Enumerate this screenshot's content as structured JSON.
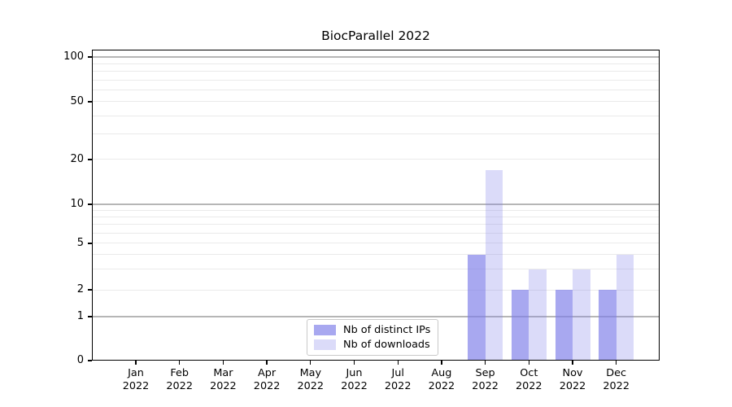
{
  "title": "BiocParallel 2022",
  "chart_data": {
    "type": "bar",
    "title": "BiocParallel 2022",
    "x_labels": [
      [
        "Jan",
        "2022"
      ],
      [
        "Feb",
        "2022"
      ],
      [
        "Mar",
        "2022"
      ],
      [
        "Apr",
        "2022"
      ],
      [
        "May",
        "2022"
      ],
      [
        "Jun",
        "2022"
      ],
      [
        "Jul",
        "2022"
      ],
      [
        "Aug",
        "2022"
      ],
      [
        "Sep",
        "2022"
      ],
      [
        "Oct",
        "2022"
      ],
      [
        "Nov",
        "2022"
      ],
      [
        "Dec",
        "2022"
      ]
    ],
    "series": [
      {
        "name": "Nb of distinct IPs",
        "color": "rgba(125,125,232,0.67)",
        "values": [
          0,
          0,
          0,
          0,
          0,
          0,
          0,
          0,
          4,
          2,
          2,
          2
        ]
      },
      {
        "name": "Nb of downloads",
        "color": "rgba(125,125,232,0.28)",
        "values": [
          0,
          0,
          0,
          0,
          0,
          0,
          0,
          0,
          17,
          3,
          3,
          4
        ]
      }
    ],
    "y_axis": {
      "tick_labels": [
        "0",
        "1",
        "2",
        "5",
        "10",
        "20",
        "50",
        "100"
      ],
      "tick_values": [
        0,
        1,
        2,
        5,
        10,
        20,
        50,
        100
      ],
      "major_grid_values": [
        1,
        10,
        100
      ],
      "minor_grid_values": [
        2,
        3,
        4,
        5,
        6,
        7,
        8,
        9,
        20,
        30,
        40,
        50,
        60,
        70,
        80,
        90
      ],
      "scale_anchors": [
        [
          0,
          1.0
        ],
        [
          1,
          0.8586
        ],
        [
          2,
          0.7723
        ],
        [
          5,
          0.623
        ],
        [
          10,
          0.4974
        ],
        [
          20,
          0.3534
        ],
        [
          50,
          0.1675
        ],
        [
          100,
          0.0236
        ]
      ],
      "range": [
        0,
        115
      ]
    },
    "grid": true,
    "legend": {
      "position": "lower center",
      "entries": [
        "Nb of distinct IPs",
        "Nb of downloads"
      ]
    },
    "colors": {
      "bar_dark": "rgba(125,125,232,0.67)",
      "bar_light": "rgba(125,125,232,0.28)",
      "major_grid": "#b6b6b6",
      "minor_grid": "#eaeaea",
      "axis": "#000000",
      "background": "#ffffff"
    }
  }
}
